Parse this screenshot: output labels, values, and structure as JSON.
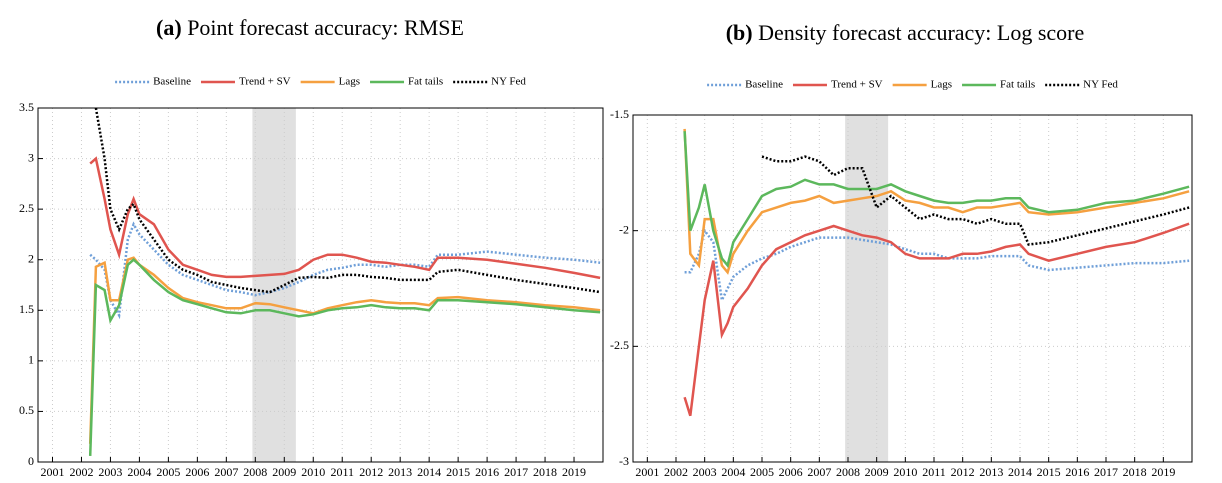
{
  "chart_data": [
    {
      "type": "line",
      "label": "(a)",
      "title": "Point forecast accuracy: RMSE",
      "x": [
        2002.3,
        2002.5,
        2002.8,
        2003.0,
        2003.3,
        2003.6,
        2003.8,
        2004.0,
        2004.5,
        2005.0,
        2005.5,
        2006.0,
        2006.5,
        2007.0,
        2007.5,
        2008.0,
        2008.5,
        2009.0,
        2009.5,
        2010.0,
        2010.5,
        2011.0,
        2011.5,
        2012.0,
        2012.5,
        2013.0,
        2013.5,
        2014.0,
        2014.3,
        2015.0,
        2016.0,
        2017.0,
        2018.0,
        2019.0,
        2019.9
      ],
      "xlim": [
        2000.5,
        2020
      ],
      "xticks": [
        2001,
        2002,
        2003,
        2004,
        2005,
        2006,
        2007,
        2008,
        2009,
        2010,
        2011,
        2012,
        2013,
        2014,
        2015,
        2016,
        2017,
        2018,
        2019
      ],
      "ylim": [
        0,
        3.5
      ],
      "yticks": [
        0,
        0.5,
        1,
        1.5,
        2,
        2.5,
        3,
        3.5
      ],
      "grid": true,
      "legend": "top",
      "shade": [
        2007.9,
        2009.4
      ],
      "series": [
        {
          "name": "Baseline",
          "color": "#6f9fd8",
          "dash": "dotted",
          "values": [
            2.05,
            2.0,
            1.9,
            1.6,
            1.45,
            2.2,
            2.35,
            2.25,
            2.1,
            1.95,
            1.85,
            1.8,
            1.75,
            1.7,
            1.68,
            1.65,
            1.68,
            1.72,
            1.78,
            1.85,
            1.9,
            1.92,
            1.95,
            1.95,
            1.93,
            1.95,
            1.95,
            1.93,
            2.05,
            2.05,
            2.08,
            2.05,
            2.02,
            2.0,
            1.97
          ]
        },
        {
          "name": "Trend + SV",
          "color": "#e0554f",
          "dash": "solid",
          "values": [
            2.95,
            3.0,
            2.6,
            2.3,
            2.05,
            2.45,
            2.6,
            2.45,
            2.35,
            2.1,
            1.95,
            1.9,
            1.85,
            1.83,
            1.83,
            1.84,
            1.85,
            1.86,
            1.9,
            2.0,
            2.05,
            2.05,
            2.02,
            1.98,
            1.97,
            1.95,
            1.93,
            1.9,
            2.02,
            2.02,
            2.0,
            1.96,
            1.92,
            1.87,
            1.82
          ]
        },
        {
          "name": "Lags",
          "color": "#f5a040",
          "dash": "solid",
          "values": [
            0.18,
            1.93,
            1.97,
            1.6,
            1.6,
            2.0,
            2.02,
            1.95,
            1.85,
            1.72,
            1.62,
            1.58,
            1.55,
            1.52,
            1.52,
            1.57,
            1.56,
            1.53,
            1.5,
            1.47,
            1.52,
            1.55,
            1.58,
            1.6,
            1.58,
            1.57,
            1.57,
            1.55,
            1.62,
            1.63,
            1.6,
            1.58,
            1.55,
            1.53,
            1.5
          ]
        },
        {
          "name": "Fat tails",
          "color": "#5cb85c",
          "dash": "solid",
          "values": [
            0.06,
            1.75,
            1.7,
            1.4,
            1.55,
            1.95,
            2.0,
            1.95,
            1.8,
            1.68,
            1.6,
            1.56,
            1.52,
            1.48,
            1.47,
            1.5,
            1.5,
            1.47,
            1.44,
            1.46,
            1.5,
            1.52,
            1.53,
            1.55,
            1.53,
            1.52,
            1.52,
            1.5,
            1.6,
            1.6,
            1.58,
            1.56,
            1.53,
            1.5,
            1.48
          ]
        },
        {
          "name": "NY Fed",
          "color": "#000000",
          "dash": "dotted",
          "values": [
            null,
            3.5,
            3.0,
            2.5,
            2.3,
            2.5,
            2.55,
            2.4,
            2.2,
            2.0,
            1.9,
            1.85,
            1.78,
            1.75,
            1.72,
            1.7,
            1.68,
            1.75,
            1.82,
            1.83,
            1.82,
            1.85,
            1.85,
            1.83,
            1.82,
            1.8,
            1.8,
            1.8,
            1.88,
            1.9,
            1.85,
            1.8,
            1.76,
            1.72,
            1.68
          ]
        }
      ]
    },
    {
      "type": "line",
      "label": "(b)",
      "title": "Density forecast accuracy: Log score",
      "x": [
        2002.3,
        2002.5,
        2002.8,
        2003.0,
        2003.3,
        2003.6,
        2003.8,
        2004.0,
        2004.5,
        2005.0,
        2005.5,
        2006.0,
        2006.5,
        2007.0,
        2007.5,
        2008.0,
        2008.5,
        2009.0,
        2009.5,
        2010.0,
        2010.5,
        2011.0,
        2011.5,
        2012.0,
        2012.5,
        2013.0,
        2013.5,
        2014.0,
        2014.3,
        2015.0,
        2016.0,
        2017.0,
        2018.0,
        2019.0,
        2019.9
      ],
      "xlim": [
        2000.5,
        2020
      ],
      "xticks": [
        2001,
        2002,
        2003,
        2004,
        2005,
        2006,
        2007,
        2008,
        2009,
        2010,
        2011,
        2012,
        2013,
        2014,
        2015,
        2016,
        2017,
        2018,
        2019
      ],
      "ylim": [
        -3,
        -1.5
      ],
      "yticks": [
        -3,
        -2.5,
        -2,
        -1.5
      ],
      "grid": true,
      "legend": "top",
      "shade": [
        2007.9,
        2009.4
      ],
      "series": [
        {
          "name": "Baseline",
          "color": "#6f9fd8",
          "dash": "dotted",
          "values": [
            -2.18,
            -2.18,
            -2.1,
            -2.0,
            -2.05,
            -2.3,
            -2.25,
            -2.2,
            -2.15,
            -2.12,
            -2.1,
            -2.07,
            -2.05,
            -2.03,
            -2.03,
            -2.03,
            -2.04,
            -2.05,
            -2.06,
            -2.08,
            -2.1,
            -2.1,
            -2.12,
            -2.12,
            -2.12,
            -2.11,
            -2.11,
            -2.11,
            -2.15,
            -2.17,
            -2.16,
            -2.15,
            -2.14,
            -2.14,
            -2.13
          ]
        },
        {
          "name": "Trend + SV",
          "color": "#e0554f",
          "dash": "solid",
          "values": [
            -2.72,
            -2.8,
            -2.5,
            -2.3,
            -2.13,
            -2.45,
            -2.4,
            -2.33,
            -2.25,
            -2.15,
            -2.08,
            -2.05,
            -2.02,
            -2.0,
            -1.98,
            -2.0,
            -2.02,
            -2.03,
            -2.05,
            -2.1,
            -2.12,
            -2.12,
            -2.12,
            -2.1,
            -2.1,
            -2.09,
            -2.07,
            -2.06,
            -2.1,
            -2.13,
            -2.1,
            -2.07,
            -2.05,
            -2.01,
            -1.97
          ]
        },
        {
          "name": "Lags",
          "color": "#f5a040",
          "dash": "solid",
          "values": [
            -1.56,
            -2.1,
            -2.15,
            -1.95,
            -1.95,
            -2.15,
            -2.18,
            -2.1,
            -2.0,
            -1.92,
            -1.9,
            -1.88,
            -1.87,
            -1.85,
            -1.88,
            -1.87,
            -1.86,
            -1.85,
            -1.83,
            -1.87,
            -1.88,
            -1.9,
            -1.9,
            -1.92,
            -1.9,
            -1.9,
            -1.89,
            -1.88,
            -1.92,
            -1.93,
            -1.92,
            -1.9,
            -1.88,
            -1.86,
            -1.83
          ]
        },
        {
          "name": "Fat tails",
          "color": "#5cb85c",
          "dash": "solid",
          "values": [
            -1.57,
            -2.0,
            -1.9,
            -1.8,
            -2.0,
            -2.12,
            -2.15,
            -2.05,
            -1.95,
            -1.85,
            -1.82,
            -1.81,
            -1.78,
            -1.8,
            -1.8,
            -1.82,
            -1.82,
            -1.82,
            -1.8,
            -1.83,
            -1.85,
            -1.87,
            -1.88,
            -1.88,
            -1.87,
            -1.87,
            -1.86,
            -1.86,
            -1.9,
            -1.92,
            -1.91,
            -1.88,
            -1.87,
            -1.84,
            -1.81
          ]
        },
        {
          "name": "NY Fed",
          "color": "#000000",
          "dash": "dotted",
          "values": [
            null,
            null,
            null,
            null,
            null,
            null,
            null,
            null,
            null,
            -1.68,
            -1.7,
            -1.7,
            -1.68,
            -1.7,
            -1.76,
            -1.73,
            -1.73,
            -1.9,
            -1.85,
            -1.9,
            -1.95,
            -1.93,
            -1.95,
            -1.95,
            -1.97,
            -1.95,
            -1.97,
            -1.97,
            -2.06,
            -2.05,
            -2.02,
            -1.99,
            -1.96,
            -1.93,
            -1.9
          ]
        }
      ]
    }
  ]
}
